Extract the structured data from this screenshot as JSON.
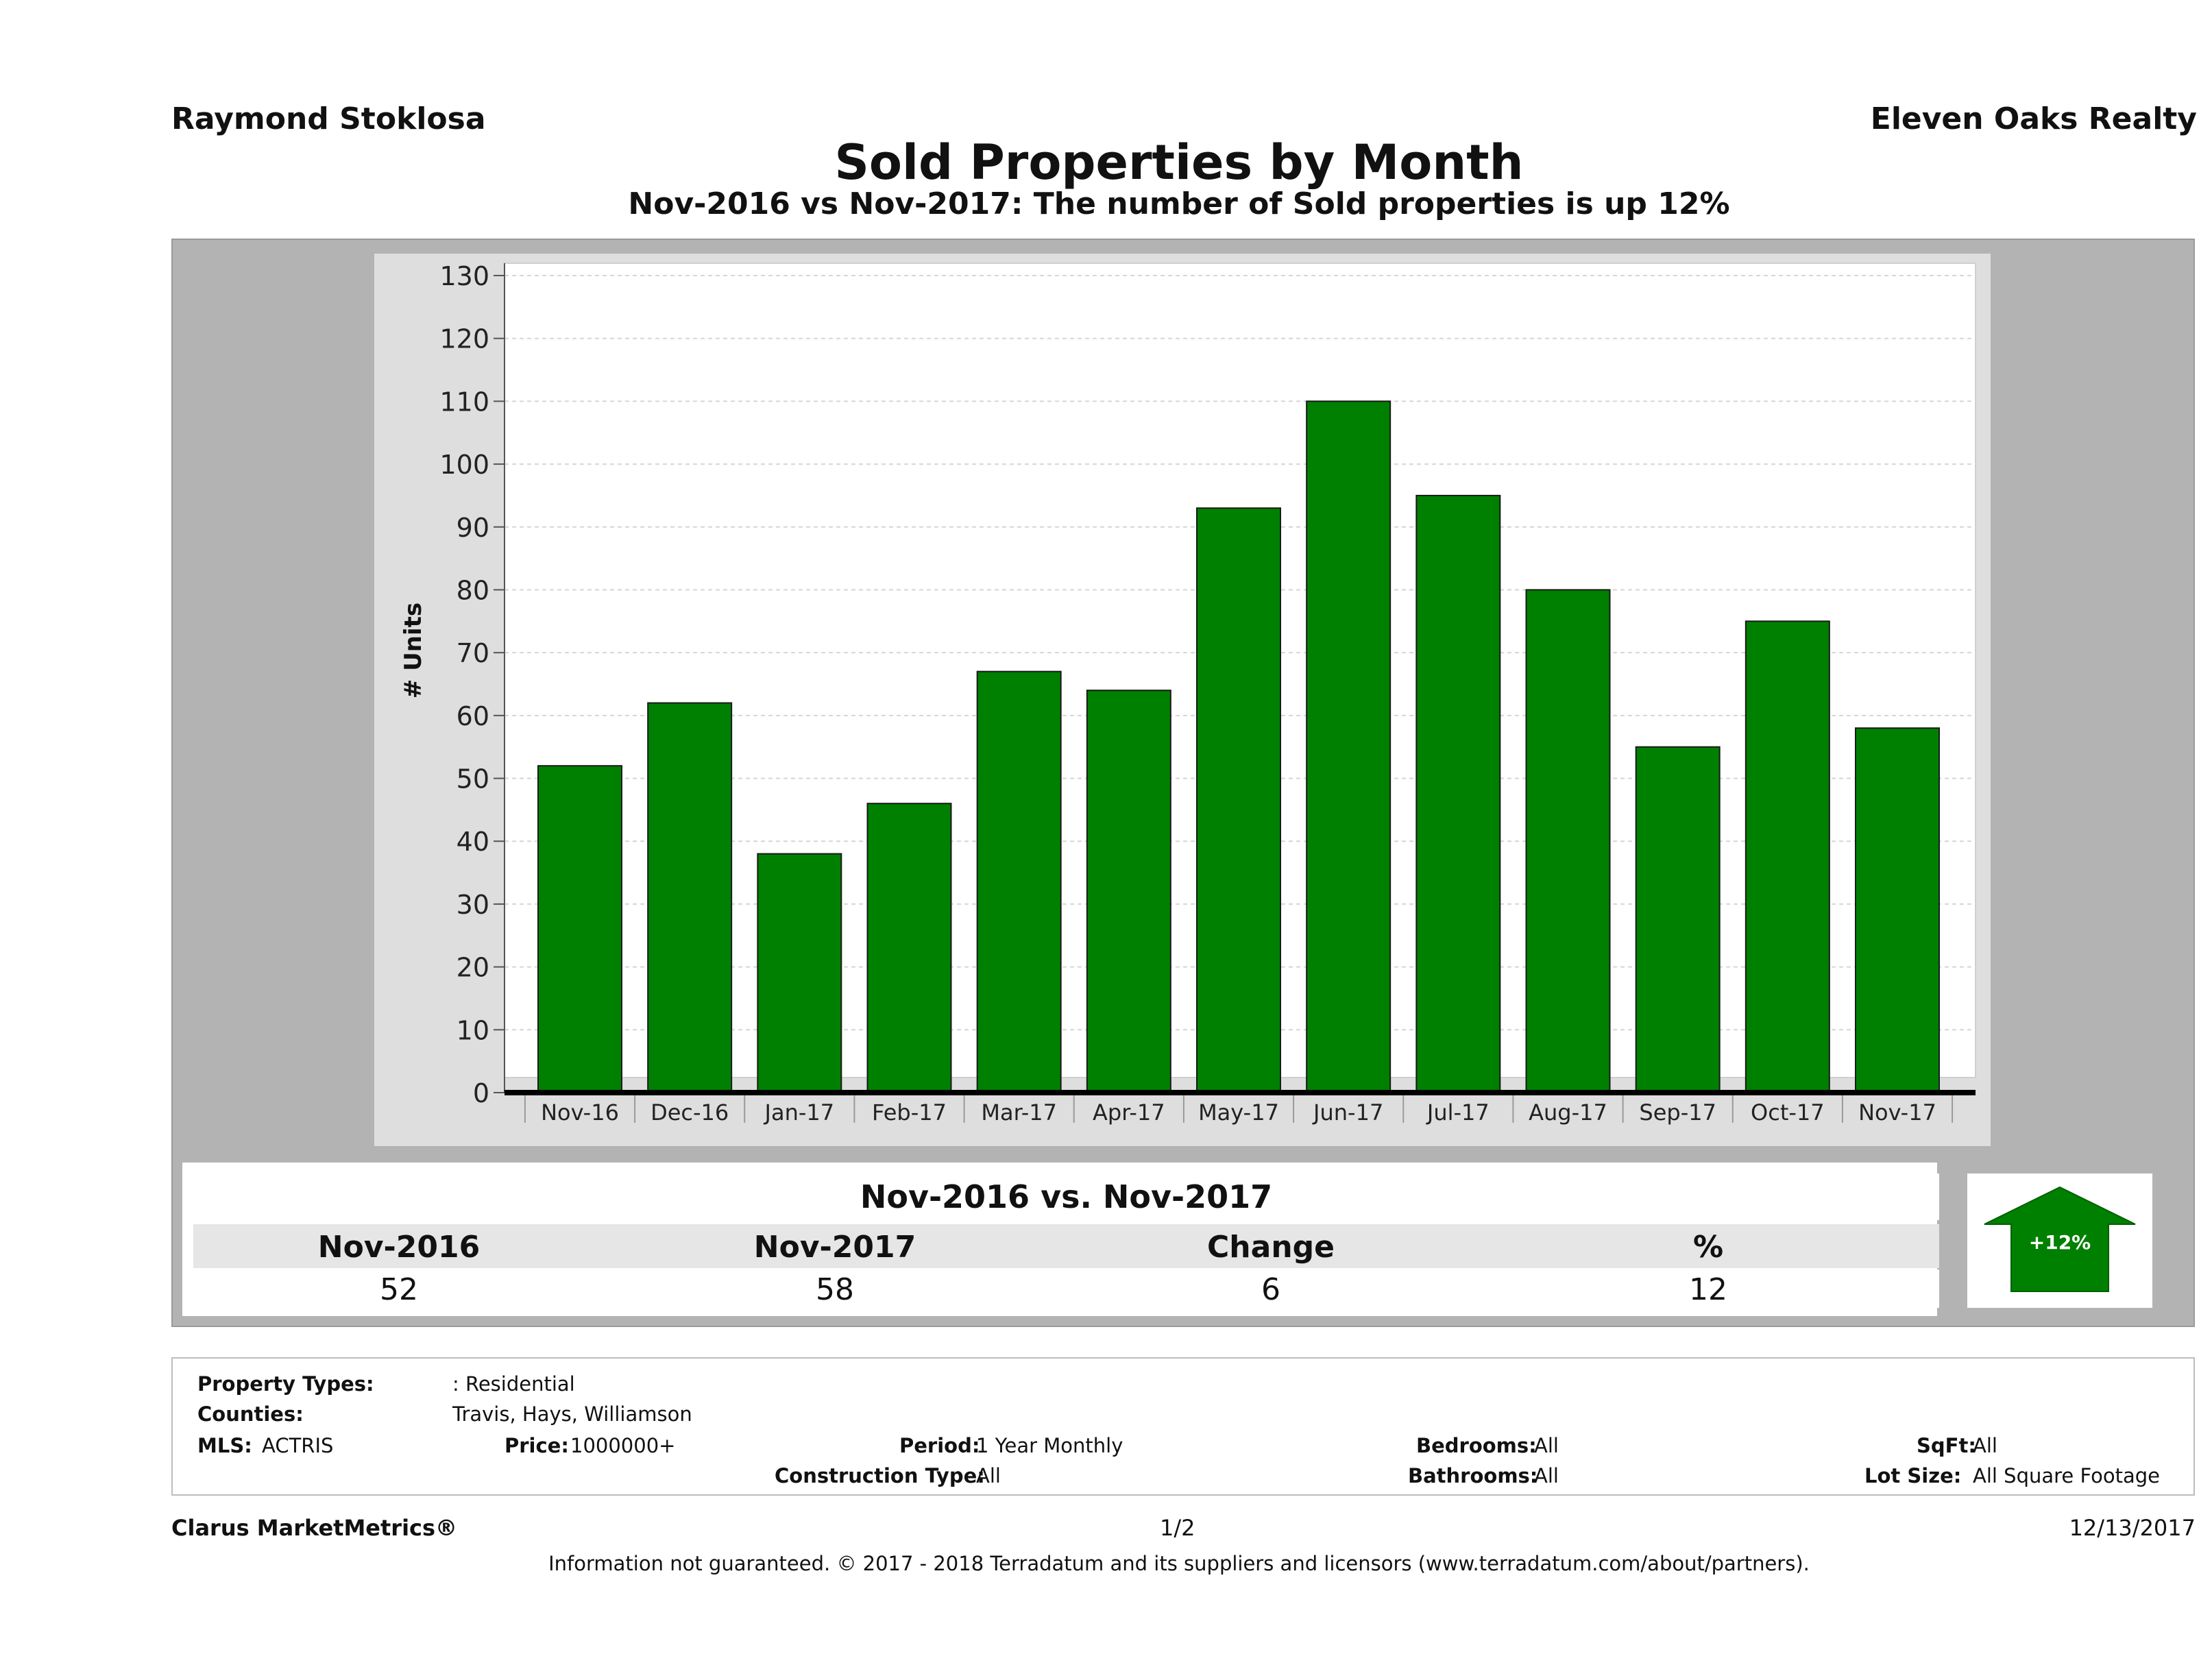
{
  "header": {
    "agent_name": "Raymond Stoklosa",
    "brokerage": "Eleven Oaks Realty",
    "title": "Sold Properties by Month",
    "subtitle": "Nov-2016 vs Nov-2017: The number of Sold  properties is up 12%"
  },
  "chart_data": {
    "type": "bar",
    "title": "Sold Properties by Month",
    "xlabel": "",
    "ylabel": "# Units",
    "ylim": [
      0,
      130
    ],
    "yticks": [
      0,
      10,
      20,
      30,
      40,
      50,
      60,
      70,
      80,
      90,
      100,
      110,
      120,
      130
    ],
    "grid": true,
    "categories": [
      "Nov-16",
      "Dec-16",
      "Jan-17",
      "Feb-17",
      "Mar-17",
      "Apr-17",
      "May-17",
      "Jun-17",
      "Jul-17",
      "Aug-17",
      "Sep-17",
      "Oct-17",
      "Nov-17"
    ],
    "values": [
      52,
      62,
      38,
      46,
      67,
      64,
      93,
      110,
      95,
      80,
      55,
      75,
      58
    ],
    "bar_color": "#008000"
  },
  "summary": {
    "title": "Nov-2016 vs. Nov-2017",
    "headers": [
      "Nov-2016",
      "Nov-2017",
      "Change",
      "%"
    ],
    "values": [
      "52",
      "58",
      "6",
      "12"
    ],
    "badge": "+12%",
    "badge_color": "#008000"
  },
  "filters": {
    "property_types_label": "Property Types:",
    "property_types_value": ": Residential",
    "counties_label": "Counties:",
    "counties_value": "Travis, Hays, Williamson",
    "mls_label": "MLS:",
    "mls_value": "ACTRIS",
    "price_label": "Price:",
    "price_value": "1000000+",
    "period_label": "Period:",
    "period_value": "1 Year Monthly",
    "construction_label": "Construction Type:",
    "construction_value": "All",
    "bedrooms_label": "Bedrooms:",
    "bedrooms_value": "All",
    "bathrooms_label": "Bathrooms:",
    "bathrooms_value": "All",
    "sqft_label": "SqFt:",
    "sqft_value": "All",
    "lot_label": "Lot Size:",
    "lot_value": "All Square Footage"
  },
  "footer": {
    "product": "Clarus MarketMetrics®",
    "page": "1/2",
    "date": "12/13/2017",
    "disclaimer": "Information not guaranteed. © 2017 - 2018 Terradatum and its suppliers and licensors (www.terradatum.com/about/partners)."
  }
}
